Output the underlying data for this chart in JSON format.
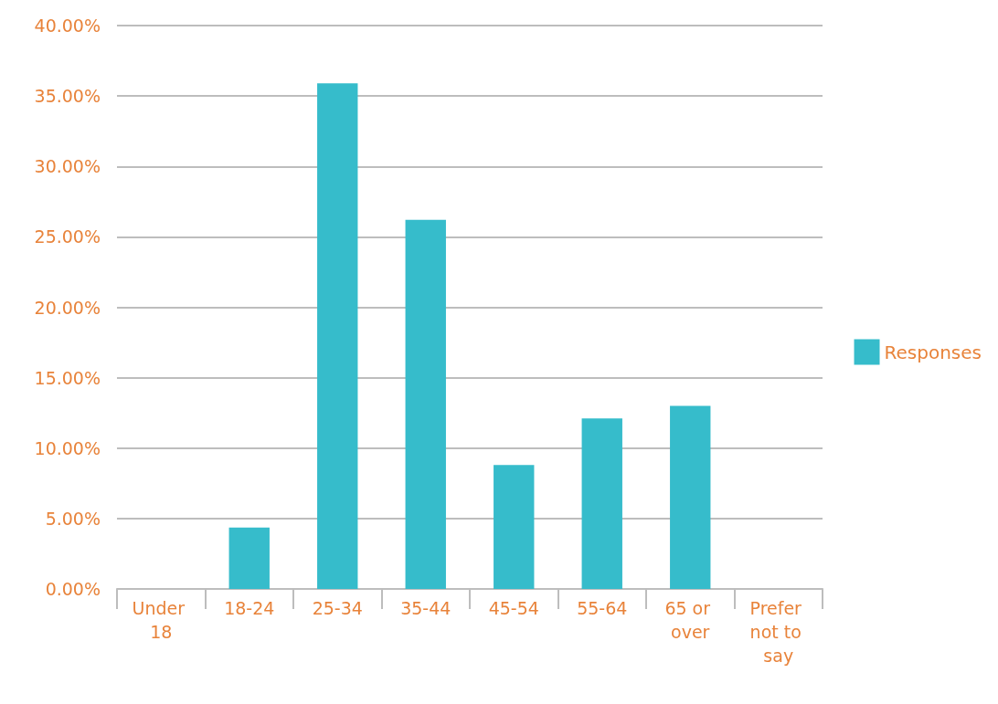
{
  "chart_data": {
    "type": "bar",
    "categories": [
      "Under 18",
      "18-24",
      "25-34",
      "35-44",
      "45-54",
      "55-64",
      "65 or over",
      "Prefer not to say"
    ],
    "series": [
      {
        "name": "Responses",
        "color": "#36bccb",
        "values": [
          0,
          4.36,
          35.9,
          26.2,
          8.8,
          12.1,
          13.0,
          0
        ]
      }
    ],
    "ylim": [
      0,
      40
    ],
    "yticks": [
      {
        "value": 0,
        "label": "0.00%"
      },
      {
        "value": 5,
        "label": "5.00%"
      },
      {
        "value": 10,
        "label": "10.00%"
      },
      {
        "value": 15,
        "label": "15.00%"
      },
      {
        "value": 20,
        "label": "20.00%"
      },
      {
        "value": 25,
        "label": "25.00%"
      },
      {
        "value": 30,
        "label": "30.00%"
      },
      {
        "value": 35,
        "label": "35.00%"
      },
      {
        "value": 40,
        "label": "40.00%"
      }
    ],
    "grid": "y",
    "legend": "right"
  }
}
